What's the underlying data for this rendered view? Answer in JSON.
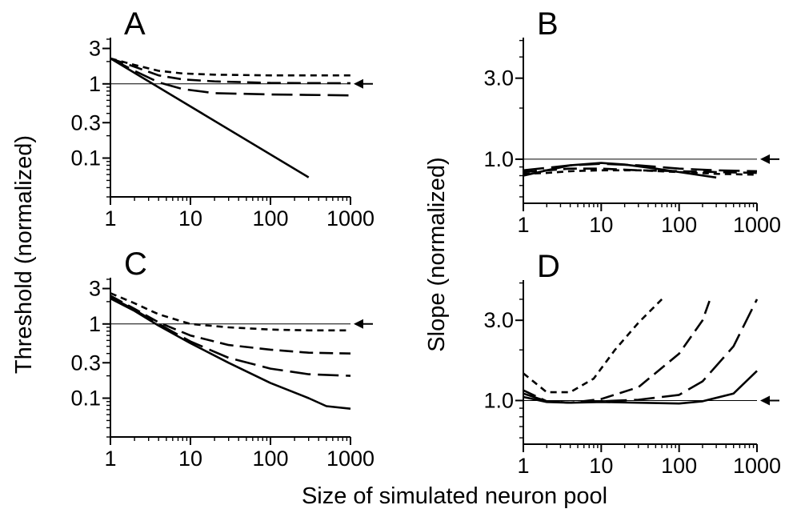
{
  "figure": {
    "shared_xlabel": "Size of simulated neuron pool",
    "ylabel_left": "Threshold (normalized)",
    "ylabel_right": "Slope (normalized)"
  },
  "chart_data": [
    {
      "panel": "A",
      "type": "line",
      "xscale": "log",
      "yscale": "log",
      "xlim": [
        1,
        1000
      ],
      "ylim": [
        0.03,
        4.2
      ],
      "x_ticks": [
        1,
        10,
        100,
        1000
      ],
      "x_tick_labels": [
        "1",
        "10",
        "100",
        "1000"
      ],
      "y_ticks": [
        0.1,
        0.3,
        1,
        3
      ],
      "y_tick_labels": [
        "0.1",
        "0.3",
        "1",
        "3"
      ],
      "reference_line": 1,
      "arrow_value": 1,
      "series": [
        {
          "style": "solid",
          "x": [
            1,
            300
          ],
          "y": [
            2.2,
            0.055
          ]
        },
        {
          "style": "long-dash",
          "x": [
            1,
            2,
            4,
            8,
            20,
            100,
            1000
          ],
          "y": [
            2.2,
            1.5,
            1.05,
            0.85,
            0.75,
            0.72,
            0.7
          ]
        },
        {
          "style": "medium-dash",
          "x": [
            1,
            2,
            4,
            8,
            20,
            100,
            1000
          ],
          "y": [
            2.2,
            1.7,
            1.3,
            1.15,
            1.08,
            1.03,
            1.02
          ]
        },
        {
          "style": "short-dash",
          "x": [
            1,
            2,
            4,
            8,
            20,
            100,
            1000
          ],
          "y": [
            2.2,
            1.8,
            1.5,
            1.38,
            1.33,
            1.3,
            1.3
          ]
        }
      ]
    },
    {
      "panel": "B",
      "type": "line",
      "xscale": "log",
      "yscale": "log",
      "xlim": [
        1,
        1000
      ],
      "ylim": [
        0.55,
        5.2
      ],
      "x_ticks": [
        1,
        10,
        100,
        1000
      ],
      "x_tick_labels": [
        "1",
        "10",
        "100",
        "1000"
      ],
      "y_ticks": [
        1.0,
        3.0
      ],
      "y_tick_labels": [
        "1.0",
        "3.0"
      ],
      "reference_line": 1,
      "arrow_value": 1,
      "series": [
        {
          "style": "solid",
          "x": [
            1,
            2,
            4,
            10,
            20,
            50,
            100,
            300
          ],
          "y": [
            0.8,
            0.86,
            0.92,
            0.95,
            0.93,
            0.88,
            0.84,
            0.78
          ]
        },
        {
          "style": "long-dash",
          "x": [
            1,
            2,
            4,
            10,
            30,
            100,
            300,
            1000
          ],
          "y": [
            0.86,
            0.89,
            0.92,
            0.94,
            0.92,
            0.88,
            0.86,
            0.85
          ]
        },
        {
          "style": "medium-dash",
          "x": [
            1,
            2,
            4,
            10,
            30,
            100,
            300,
            1000
          ],
          "y": [
            0.84,
            0.86,
            0.88,
            0.88,
            0.86,
            0.85,
            0.84,
            0.83
          ]
        },
        {
          "style": "short-dash",
          "x": [
            1,
            2,
            4,
            10,
            30,
            100,
            300,
            1000
          ],
          "y": [
            0.82,
            0.83,
            0.85,
            0.86,
            0.86,
            0.84,
            0.82,
            0.81
          ]
        }
      ]
    },
    {
      "panel": "C",
      "type": "line",
      "xscale": "log",
      "yscale": "log",
      "xlim": [
        1,
        1000
      ],
      "ylim": [
        0.03,
        4.2
      ],
      "x_ticks": [
        1,
        10,
        100,
        1000
      ],
      "x_tick_labels": [
        "1",
        "10",
        "100",
        "1000"
      ],
      "y_ticks": [
        0.1,
        0.3,
        1,
        3
      ],
      "y_tick_labels": [
        "0.1",
        "0.3",
        "1",
        "3"
      ],
      "reference_line": 1,
      "arrow_value": 1,
      "series": [
        {
          "style": "solid",
          "x": [
            1,
            2,
            4,
            10,
            30,
            100,
            300,
            500,
            1000
          ],
          "y": [
            2.2,
            1.5,
            0.95,
            0.55,
            0.3,
            0.16,
            0.1,
            0.078,
            0.072
          ]
        },
        {
          "style": "long-dash",
          "x": [
            1,
            2,
            4,
            10,
            30,
            100,
            300,
            1000
          ],
          "y": [
            2.3,
            1.55,
            1.0,
            0.58,
            0.35,
            0.25,
            0.21,
            0.2
          ]
        },
        {
          "style": "medium-dash",
          "x": [
            1,
            2,
            4,
            10,
            30,
            100,
            300,
            1000
          ],
          "y": [
            2.4,
            1.6,
            1.05,
            0.7,
            0.52,
            0.45,
            0.41,
            0.4
          ]
        },
        {
          "style": "short-dash",
          "x": [
            1,
            2,
            4,
            10,
            30,
            100,
            300,
            1000
          ],
          "y": [
            2.6,
            1.9,
            1.35,
            1.0,
            0.9,
            0.84,
            0.82,
            0.82
          ]
        }
      ]
    },
    {
      "panel": "D",
      "type": "line",
      "xscale": "log",
      "yscale": "log",
      "xlim": [
        1,
        1000
      ],
      "ylim": [
        0.55,
        5.2
      ],
      "x_ticks": [
        1,
        10,
        100,
        1000
      ],
      "x_tick_labels": [
        "1",
        "10",
        "100",
        "1000"
      ],
      "y_ticks": [
        1.0,
        3.0
      ],
      "y_tick_labels": [
        "1.0",
        "3.0"
      ],
      "reference_line": 1,
      "arrow_value": 1,
      "series": [
        {
          "style": "solid",
          "x": [
            1,
            2,
            4,
            10,
            30,
            100,
            200,
            500,
            1000
          ],
          "y": [
            1.05,
            0.98,
            0.97,
            0.98,
            0.97,
            0.96,
            0.99,
            1.1,
            1.5
          ]
        },
        {
          "style": "long-dash",
          "x": [
            1,
            2,
            4,
            10,
            30,
            100,
            200,
            500,
            1000
          ],
          "y": [
            1.1,
            0.99,
            0.97,
            0.99,
            1.01,
            1.08,
            1.3,
            2.1,
            4.0
          ]
        },
        {
          "style": "medium-dash",
          "x": [
            1,
            2,
            4,
            10,
            30,
            100,
            200,
            250
          ],
          "y": [
            1.15,
            0.99,
            0.97,
            1.02,
            1.2,
            1.9,
            3.0,
            4.0
          ]
        },
        {
          "style": "short-dash",
          "x": [
            1,
            2,
            4,
            8,
            15,
            30,
            60
          ],
          "y": [
            1.45,
            1.12,
            1.12,
            1.35,
            2.0,
            2.9,
            4.0
          ]
        }
      ]
    }
  ]
}
